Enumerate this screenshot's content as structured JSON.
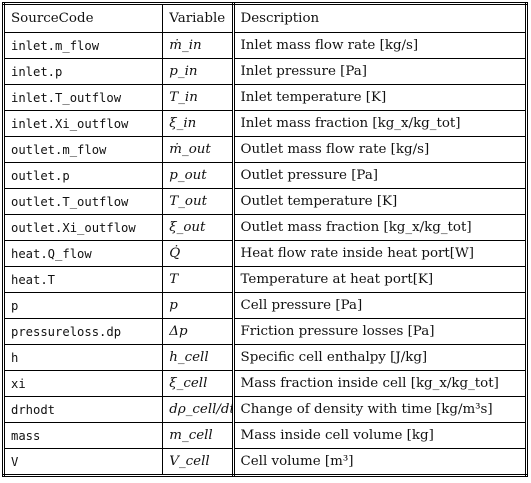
{
  "header": {
    "source": "SourceCode",
    "variable": "Variable",
    "description": "Description"
  },
  "groups": [
    {
      "rows": [
        {
          "code": "inlet.m_flow",
          "var": "ṁ_in",
          "desc": "Inlet mass flow rate [kg/s]"
        },
        {
          "code": "inlet.p",
          "var": "p_in",
          "desc": "Inlet pressure [Pa]"
        },
        {
          "code": "inlet.T_outflow",
          "var": "T_in",
          "desc": "Inlet temperature [K]"
        },
        {
          "code": "inlet.Xi_outflow",
          "var": "ξ_in",
          "desc": "Inlet mass fraction [kg_x/kg_tot]"
        }
      ]
    },
    {
      "rows": [
        {
          "code": "outlet.m_flow",
          "var": "ṁ_out",
          "desc": "Outlet mass flow rate [kg/s]"
        },
        {
          "code": "outlet.p",
          "var": "p_out",
          "desc": "Outlet pressure [Pa]"
        },
        {
          "code": "outlet.T_outflow",
          "var": "T_out",
          "desc": "Outlet temperature [K]"
        },
        {
          "code": "outlet.Xi_outflow",
          "var": "ξ_out",
          "desc": "Outlet mass fraction [kg_x/kg_tot]"
        }
      ]
    },
    {
      "rows": [
        {
          "code": "heat.Q_flow",
          "var": "Q̇",
          "desc": "Heat flow rate inside heat port[W]"
        },
        {
          "code": "heat.T",
          "var": "T",
          "desc": "Temperature at heat port[K]"
        }
      ]
    },
    {
      "rows": [
        {
          "code": "p",
          "var": "p",
          "desc": "Cell pressure [Pa]"
        },
        {
          "code": "pressureloss.dp",
          "var": "Δp",
          "desc": "Friction pressure losses [Pa]"
        },
        {
          "code": "h",
          "var": "h_cell",
          "desc": "Specific cell enthalpy [J/kg]"
        },
        {
          "code": "xi",
          "var": "ξ_cell",
          "desc": "Mass fraction inside cell [kg_x/kg_tot]"
        },
        {
          "code": "drhodt",
          "var": "dρ_cell/dt",
          "desc": "Change of density with time [kg/m³s]"
        },
        {
          "code": "mass",
          "var": "m_cell",
          "desc": "Mass inside cell volume [kg]"
        },
        {
          "code": "V",
          "var": "V_cell",
          "desc": "Cell volume [m³]"
        }
      ]
    }
  ]
}
